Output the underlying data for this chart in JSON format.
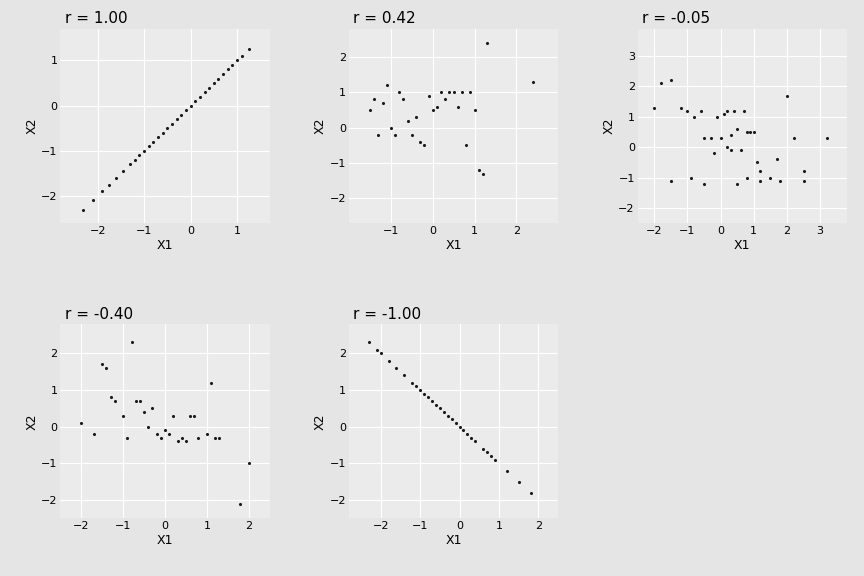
{
  "panels": [
    {
      "r": 1.0,
      "title": "r = 1.00",
      "x1_data": [
        -2.31,
        -2.1,
        -1.9,
        -1.75,
        -1.6,
        -1.45,
        -1.3,
        -1.2,
        -1.1,
        -1.0,
        -0.9,
        -0.8,
        -0.7,
        -0.6,
        -0.5,
        -0.4,
        -0.3,
        -0.2,
        -0.1,
        0.0,
        0.1,
        0.2,
        0.3,
        0.4,
        0.5,
        0.6,
        0.7,
        0.8,
        0.9,
        1.0,
        1.1,
        1.25
      ],
      "x2_data": [
        -2.31,
        -2.1,
        -1.9,
        -1.75,
        -1.6,
        -1.45,
        -1.3,
        -1.2,
        -1.1,
        -1.0,
        -0.9,
        -0.8,
        -0.7,
        -0.6,
        -0.5,
        -0.4,
        -0.3,
        -0.2,
        -0.1,
        0.0,
        0.1,
        0.2,
        0.3,
        0.4,
        0.5,
        0.6,
        0.7,
        0.8,
        0.9,
        1.0,
        1.1,
        1.25
      ],
      "xlim": [
        -2.8,
        1.7
      ],
      "ylim": [
        -2.6,
        1.7
      ],
      "xticks": [
        -2,
        -1,
        0,
        1
      ],
      "yticks": [
        -2,
        -1,
        0,
        1
      ],
      "xlabel": "X1",
      "ylabel": "X2"
    },
    {
      "r": 0.42,
      "title": "r = 0.42",
      "x1_data": [
        -1.5,
        -1.4,
        -1.3,
        -1.2,
        -1.1,
        -1.0,
        -0.9,
        -0.8,
        -0.7,
        -0.6,
        -0.5,
        -0.4,
        -0.3,
        -0.2,
        -0.1,
        0.0,
        0.1,
        0.2,
        0.3,
        0.4,
        0.5,
        0.6,
        0.7,
        0.8,
        0.9,
        1.0,
        1.1,
        1.2,
        1.3,
        2.4
      ],
      "x2_data": [
        0.5,
        0.8,
        -0.2,
        0.7,
        1.2,
        0.0,
        -0.2,
        1.0,
        0.8,
        0.2,
        -0.2,
        0.3,
        -0.4,
        -0.5,
        0.9,
        0.5,
        0.6,
        1.0,
        0.8,
        1.0,
        1.0,
        0.6,
        1.0,
        -0.5,
        1.0,
        0.5,
        -1.2,
        -1.3,
        2.4,
        1.3
      ],
      "xlim": [
        -2.0,
        3.0
      ],
      "ylim": [
        -2.7,
        2.8
      ],
      "xticks": [
        -1,
        0,
        1,
        2
      ],
      "yticks": [
        -2,
        -1,
        0,
        1,
        2
      ],
      "xlabel": "X1",
      "ylabel": "X2"
    },
    {
      "r": -0.05,
      "title": "r = -0.05",
      "x1_data": [
        -2.0,
        -1.8,
        -1.5,
        -1.2,
        -1.0,
        -0.8,
        -0.6,
        -0.5,
        -0.3,
        -0.1,
        0.0,
        0.1,
        0.2,
        0.3,
        0.3,
        0.4,
        0.5,
        0.6,
        0.7,
        0.8,
        0.9,
        1.0,
        1.1,
        1.2,
        1.5,
        1.7,
        2.0,
        2.2,
        2.5,
        3.2,
        -1.5,
        -0.9,
        -0.5,
        -0.2,
        0.2,
        0.5,
        0.8,
        1.2,
        1.8,
        2.5
      ],
      "x2_data": [
        1.3,
        2.1,
        2.2,
        1.3,
        1.2,
        1.0,
        1.2,
        0.3,
        0.3,
        1.0,
        0.3,
        1.1,
        1.2,
        0.4,
        -0.1,
        1.2,
        0.6,
        -0.1,
        1.2,
        0.5,
        0.5,
        0.5,
        -0.5,
        -0.8,
        -1.0,
        -0.4,
        1.7,
        0.3,
        -0.8,
        0.3,
        -1.1,
        -1.0,
        -1.2,
        -0.2,
        0.0,
        -1.2,
        -1.0,
        -1.1,
        -1.1,
        -1.1
      ],
      "xlim": [
        -2.5,
        3.8
      ],
      "ylim": [
        -2.5,
        3.9
      ],
      "xticks": [
        -2,
        -1,
        0,
        1,
        2,
        3
      ],
      "yticks": [
        -2,
        -1,
        0,
        1,
        2,
        3
      ],
      "xlabel": "X1",
      "ylabel": "X2"
    },
    {
      "r": -0.4,
      "title": "r = -0.40",
      "x1_data": [
        -2.0,
        -1.7,
        -1.5,
        -1.4,
        -1.3,
        -1.2,
        -1.0,
        -0.9,
        -0.8,
        -0.7,
        -0.6,
        -0.5,
        -0.4,
        -0.3,
        -0.2,
        -0.1,
        0.0,
        0.1,
        0.2,
        0.3,
        0.4,
        0.5,
        0.6,
        0.7,
        0.8,
        1.0,
        1.1,
        1.2,
        1.3,
        1.8,
        2.0
      ],
      "x2_data": [
        0.1,
        -0.2,
        1.7,
        1.6,
        0.8,
        0.7,
        0.3,
        -0.3,
        2.3,
        0.7,
        0.7,
        0.4,
        0.0,
        0.5,
        -0.2,
        -0.3,
        -0.1,
        -0.2,
        0.3,
        -0.4,
        -0.3,
        -0.4,
        0.3,
        0.3,
        -0.3,
        -0.2,
        1.2,
        -0.3,
        -0.3,
        -2.1,
        -1.0
      ],
      "xlim": [
        -2.5,
        2.5
      ],
      "ylim": [
        -2.5,
        2.8
      ],
      "xticks": [
        -2,
        -1,
        0,
        1,
        2
      ],
      "yticks": [
        -2,
        -1,
        0,
        1,
        2
      ],
      "xlabel": "X1",
      "ylabel": "X2"
    },
    {
      "r": -1.0,
      "title": "r = -1.00",
      "x1_data": [
        -2.3,
        -2.1,
        -2.0,
        -1.8,
        -1.6,
        -1.4,
        -1.2,
        -1.1,
        -1.0,
        -0.9,
        -0.8,
        -0.7,
        -0.6,
        -0.5,
        -0.4,
        -0.3,
        -0.2,
        -0.1,
        0.0,
        0.1,
        0.2,
        0.3,
        0.4,
        0.6,
        0.7,
        0.8,
        0.9,
        1.2,
        1.5,
        1.8
      ],
      "x2_data": [
        2.3,
        2.1,
        2.0,
        1.8,
        1.6,
        1.4,
        1.2,
        1.1,
        1.0,
        0.9,
        0.8,
        0.7,
        0.6,
        0.5,
        0.4,
        0.3,
        0.2,
        0.1,
        0.0,
        -0.1,
        -0.2,
        -0.3,
        -0.4,
        -0.6,
        -0.7,
        -0.8,
        -0.9,
        -1.2,
        -1.5,
        -1.8
      ],
      "xlim": [
        -2.8,
        2.5
      ],
      "ylim": [
        -2.5,
        2.8
      ],
      "xticks": [
        -2,
        -1,
        0,
        1,
        2
      ],
      "yticks": [
        -2,
        -1,
        0,
        1,
        2
      ],
      "xlabel": "X1",
      "ylabel": "X2"
    }
  ],
  "fig_bg_color": "#E5E5E5",
  "bg_color": "#EBEBEB",
  "point_color": "#1a1a1a",
  "point_size": 5,
  "grid_color": "#FFFFFF",
  "title_fontsize": 11,
  "label_fontsize": 9,
  "tick_fontsize": 8
}
